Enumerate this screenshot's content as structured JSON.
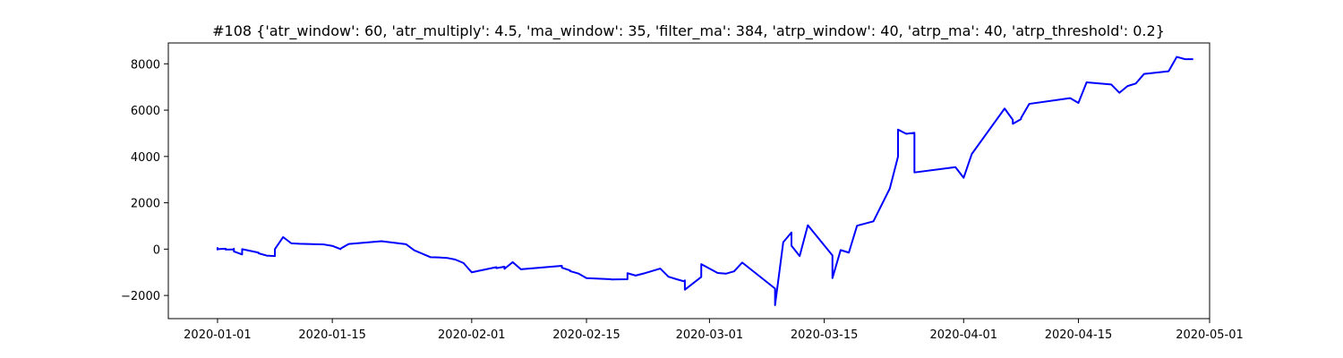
{
  "chart_data": {
    "type": "line",
    "title": "#108 {'atr_window': 60, 'atr_multiply': 4.5, 'ma_window': 35, 'filter_ma': 384, 'atrp_window': 40, 'atrp_ma': 40, 'atrp_threshold': 0.2}",
    "xlabel": "",
    "ylabel": "",
    "x_type": "date",
    "xlim": [
      "2019-12-26",
      "2020-05-01"
    ],
    "ylim": [
      -3000,
      8900
    ],
    "x_ticks": [
      "2020-01-01",
      "2020-01-15",
      "2020-02-01",
      "2020-02-15",
      "2020-03-01",
      "2020-03-15",
      "2020-04-01",
      "2020-04-15",
      "2020-05-01"
    ],
    "x_tick_labels": [
      "2020-01-01",
      "2020-01-15",
      "2020-02-01",
      "2020-02-15",
      "2020-03-01",
      "2020-03-15",
      "2020-04-01",
      "2020-04-15",
      "2020-05-01"
    ],
    "y_ticks": [
      -2000,
      0,
      2000,
      4000,
      6000,
      8000
    ],
    "y_tick_labels": [
      "−2000",
      "0",
      "2000",
      "4000",
      "6000",
      "8000"
    ],
    "grid": false,
    "series": [
      {
        "color": "#0000ff",
        "x": [
          "2020-01-01",
          "2020-01-01",
          "2020-01-01",
          "2020-01-02",
          "2020-01-02",
          "2020-01-03",
          "2020-01-03",
          "2020-01-03",
          "2020-01-04",
          "2020-01-04",
          "2020-01-06",
          "2020-01-06",
          "2020-01-06",
          "2020-01-07",
          "2020-01-08",
          "2020-01-08",
          "2020-01-09",
          "2020-01-10",
          "2020-01-11",
          "2020-01-14",
          "2020-01-15",
          "2020-01-16",
          "2020-01-16",
          "2020-01-17",
          "2020-01-21",
          "2020-01-24",
          "2020-01-25",
          "2020-01-27",
          "2020-01-28",
          "2020-01-29",
          "2020-01-30",
          "2020-01-31",
          "2020-02-01",
          "2020-02-04",
          "2020-02-04",
          "2020-02-05",
          "2020-02-05",
          "2020-02-06",
          "2020-02-07",
          "2020-02-12",
          "2020-02-12",
          "2020-02-13",
          "2020-02-13",
          "2020-02-14",
          "2020-02-15",
          "2020-02-18",
          "2020-02-18",
          "2020-02-20",
          "2020-02-20",
          "2020-02-21",
          "2020-02-22",
          "2020-02-24",
          "2020-02-25",
          "2020-02-26",
          "2020-02-27",
          "2020-02-27",
          "2020-02-27",
          "2020-02-29",
          "2020-02-29",
          "2020-03-02",
          "2020-03-03",
          "2020-03-04",
          "2020-03-05",
          "2020-03-09",
          "2020-03-09",
          "2020-03-10",
          "2020-03-11",
          "2020-03-11",
          "2020-03-12",
          "2020-03-13",
          "2020-03-16",
          "2020-03-16",
          "2020-03-16",
          "2020-03-17",
          "2020-03-18",
          "2020-03-19",
          "2020-03-21",
          "2020-03-23",
          "2020-03-24",
          "2020-03-24",
          "2020-03-24",
          "2020-03-25",
          "2020-03-26",
          "2020-03-26",
          "2020-03-31",
          "2020-04-01",
          "2020-04-02",
          "2020-04-06",
          "2020-04-07",
          "2020-04-07",
          "2020-04-08",
          "2020-04-08",
          "2020-04-09",
          "2020-04-14",
          "2020-04-15",
          "2020-04-16",
          "2020-04-19",
          "2020-04-20",
          "2020-04-21",
          "2020-04-22",
          "2020-04-23",
          "2020-04-26",
          "2020-04-27",
          "2020-04-28",
          "2020-04-29"
        ],
        "y": [
          -50,
          50,
          0,
          20,
          -20,
          -10,
          20,
          -100,
          -230,
          0,
          -150,
          -160,
          -180,
          -280,
          -300,
          0,
          520,
          250,
          230,
          200,
          140,
          0,
          20,
          220,
          340,
          210,
          -50,
          -350,
          -360,
          -380,
          -450,
          -600,
          -1000,
          -780,
          -820,
          -760,
          -850,
          -560,
          -870,
          -720,
          -800,
          -920,
          -950,
          -1050,
          -1250,
          -1300,
          -1310,
          -1300,
          -1040,
          -1140,
          -1050,
          -840,
          -1190,
          -1300,
          -1400,
          -1350,
          -1750,
          -1200,
          -650,
          -1030,
          -1060,
          -960,
          -580,
          -1700,
          -2420,
          300,
          720,
          150,
          -300,
          1030,
          -270,
          -1000,
          -1250,
          -40,
          -150,
          1010,
          1200,
          2620,
          4000,
          4200,
          5160,
          4980,
          5020,
          3310,
          3540,
          3080,
          4110,
          6070,
          5580,
          5410,
          5610,
          5660,
          6270,
          6520,
          6310,
          7200,
          7110,
          6750,
          7040,
          7150,
          7560,
          7680,
          8300,
          8200,
          8200
        ]
      }
    ]
  }
}
